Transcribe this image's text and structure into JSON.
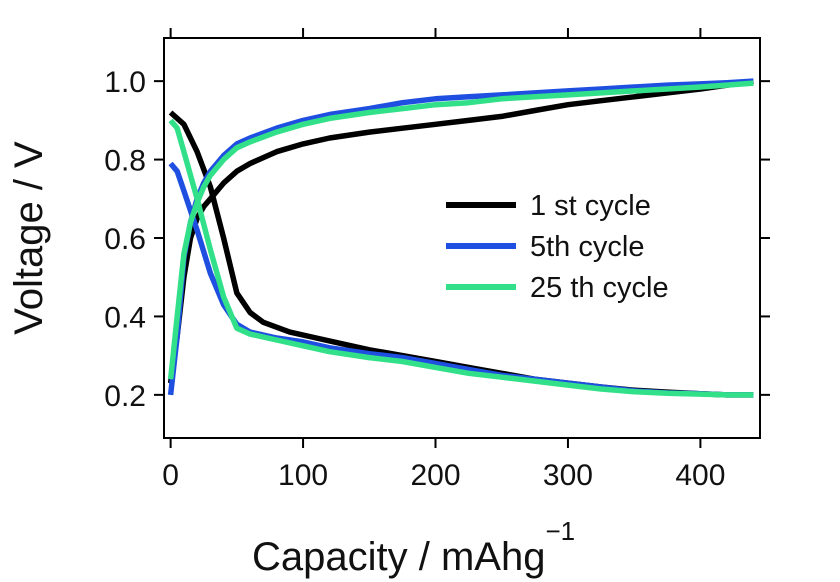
{
  "chart_data": {
    "type": "line",
    "xlabel": "Capacity / mAhg",
    "xlabel_superscript": "−1",
    "ylabel": "Voltage / V",
    "xlim": [
      -5,
      445
    ],
    "ylim": [
      0.09,
      1.11
    ],
    "xticks": [
      0,
      100,
      200,
      300,
      400
    ],
    "yticks": [
      0.2,
      0.4,
      0.6,
      0.8,
      1.0
    ],
    "ytick_labels": [
      "0.2",
      "0.4",
      "0.6",
      "0.8",
      "1.0"
    ],
    "grid": false,
    "legend_position": "center-right",
    "series": [
      {
        "name": "1 st cycle",
        "color": "#000000",
        "segments": [
          {
            "x": [
              0,
              10,
              20,
              30,
              40,
              50,
              60,
              70,
              90,
              110,
              130,
              150,
              175,
              200,
              225,
              250,
              275,
              300,
              325,
              350,
              375,
              400,
              420,
              440
            ],
            "y": [
              0.92,
              0.89,
              0.82,
              0.73,
              0.6,
              0.46,
              0.41,
              0.385,
              0.36,
              0.345,
              0.33,
              0.315,
              0.3,
              0.285,
              0.27,
              0.255,
              0.24,
              0.23,
              0.22,
              0.212,
              0.207,
              0.203,
              0.2,
              0.2
            ]
          },
          {
            "x": [
              0,
              5,
              10,
              15,
              20,
              25,
              30,
              40,
              50,
              60,
              80,
              100,
              120,
              150,
              175,
              200,
              225,
              250,
              275,
              300,
              325,
              350,
              375,
              400,
              420,
              440
            ],
            "y": [
              0.23,
              0.35,
              0.5,
              0.6,
              0.65,
              0.68,
              0.7,
              0.74,
              0.77,
              0.79,
              0.82,
              0.84,
              0.855,
              0.87,
              0.88,
              0.89,
              0.9,
              0.91,
              0.925,
              0.94,
              0.95,
              0.96,
              0.97,
              0.98,
              0.99,
              1.0
            ]
          }
        ]
      },
      {
        "name": "5th cycle",
        "color": "#1f4fe0",
        "segments": [
          {
            "x": [
              0,
              5,
              10,
              20,
              30,
              40,
              50,
              60,
              80,
              100,
              120,
              150,
              175,
              200,
              225,
              250,
              275,
              300,
              325,
              350,
              375,
              400,
              420,
              440
            ],
            "y": [
              0.79,
              0.77,
              0.72,
              0.62,
              0.51,
              0.43,
              0.38,
              0.36,
              0.345,
              0.335,
              0.32,
              0.305,
              0.295,
              0.28,
              0.265,
              0.25,
              0.24,
              0.23,
              0.22,
              0.21,
              0.205,
              0.203,
              0.2,
              0.2
            ]
          },
          {
            "x": [
              0,
              5,
              10,
              15,
              20,
              25,
              30,
              40,
              50,
              60,
              80,
              100,
              120,
              150,
              175,
              200,
              225,
              250,
              275,
              300,
              325,
              350,
              375,
              400,
              420,
              440
            ],
            "y": [
              0.2,
              0.35,
              0.55,
              0.64,
              0.7,
              0.74,
              0.77,
              0.81,
              0.84,
              0.855,
              0.88,
              0.9,
              0.915,
              0.93,
              0.945,
              0.955,
              0.96,
              0.965,
              0.97,
              0.975,
              0.98,
              0.985,
              0.99,
              0.993,
              0.996,
              1.0
            ]
          }
        ]
      },
      {
        "name": "25 th cycle",
        "color": "#33e08a",
        "segments": [
          {
            "x": [
              0,
              5,
              10,
              20,
              30,
              40,
              50,
              60,
              80,
              100,
              120,
              150,
              175,
              200,
              225,
              250,
              275,
              300,
              325,
              350,
              375,
              400,
              420,
              440
            ],
            "y": [
              0.9,
              0.88,
              0.82,
              0.7,
              0.57,
              0.45,
              0.37,
              0.355,
              0.34,
              0.325,
              0.31,
              0.295,
              0.285,
              0.27,
              0.255,
              0.245,
              0.235,
              0.225,
              0.215,
              0.208,
              0.204,
              0.202,
              0.2,
              0.2
            ]
          },
          {
            "x": [
              0,
              5,
              10,
              15,
              20,
              25,
              30,
              40,
              50,
              60,
              80,
              100,
              120,
              150,
              175,
              200,
              225,
              250,
              275,
              300,
              325,
              350,
              375,
              400,
              420,
              440
            ],
            "y": [
              0.24,
              0.4,
              0.56,
              0.64,
              0.69,
              0.73,
              0.76,
              0.8,
              0.83,
              0.845,
              0.87,
              0.89,
              0.905,
              0.92,
              0.93,
              0.94,
              0.945,
              0.955,
              0.96,
              0.965,
              0.97,
              0.975,
              0.98,
              0.985,
              0.99,
              0.995
            ]
          }
        ]
      }
    ]
  }
}
